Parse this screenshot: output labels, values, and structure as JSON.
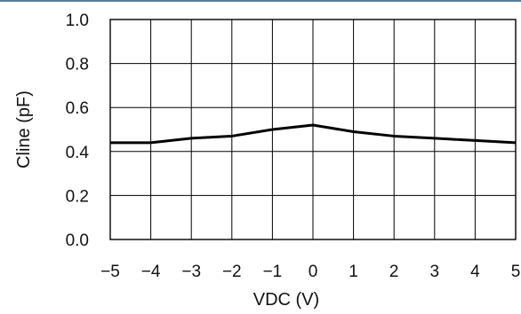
{
  "chart_data": {
    "type": "line",
    "xlabel": "VDC (V)",
    "ylabel": "Cline (pF)",
    "xlim": [
      -5,
      5
    ],
    "ylim": [
      0.0,
      1.0
    ],
    "grid": true,
    "x_ticks": [
      "−5",
      "−4",
      "−3",
      "−2",
      "−1",
      "0",
      "1",
      "2",
      "3",
      "4",
      "5"
    ],
    "y_ticks": [
      "0.0",
      "0.2",
      "0.4",
      "0.6",
      "0.8",
      "1.0"
    ],
    "series": [
      {
        "x": [
          -5,
          -4,
          -3,
          -2,
          -1,
          0,
          1,
          2,
          3,
          4,
          5
        ],
        "y": [
          0.44,
          0.44,
          0.46,
          0.47,
          0.5,
          0.52,
          0.49,
          0.47,
          0.46,
          0.45,
          0.44
        ]
      }
    ]
  }
}
